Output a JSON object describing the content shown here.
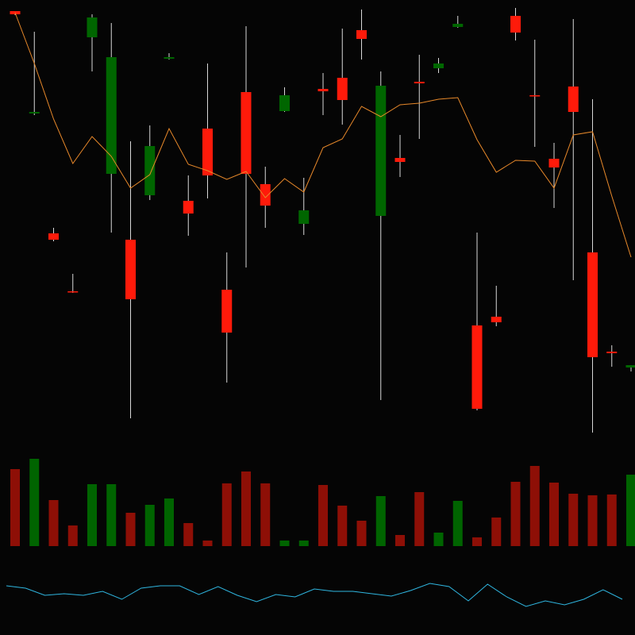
{
  "chart_data": {
    "type": "candlestick",
    "open": [
      542,
      419,
      258,
      192,
      538,
      488,
      183,
      376,
      488,
      291,
      339,
      141,
      341,
      301,
      440,
      295,
      445,
      434,
      511,
      452,
      356,
      455,
      480,
      530,
      45,
      154,
      519,
      439,
      349,
      419,
      110,
      115,
      100
    ],
    "high": [
      546,
      520,
      273,
      215,
      542,
      531,
      382,
      402,
      493,
      339,
      480,
      242,
      527,
      350,
      450,
      336,
      468,
      524,
      548,
      470,
      390,
      491,
      487,
      540,
      267,
      200,
      550,
      510,
      380,
      536,
      435,
      125,
      100
    ],
    "low": [
      541,
      415,
      256,
      191,
      470,
      267,
      33,
      308,
      485,
      263,
      310,
      78,
      223,
      273,
      419,
      264,
      415,
      403,
      485,
      56,
      337,
      385,
      468,
      525,
      43,
      149,
      509,
      375,
      298,
      207,
      15,
      98,
      92
    ],
    "close": [
      546,
      417,
      266,
      193,
      513,
      341,
      258,
      314,
      486,
      307,
      398,
      195,
      444,
      328,
      420,
      278,
      448,
      462,
      522,
      288,
      361,
      457,
      474,
      526,
      150,
      161,
      540,
      440,
      360,
      451,
      242,
      117,
      97
    ],
    "ylim": [
      0,
      560
    ],
    "up_color": "#ff1a0a",
    "down_color": "#006600",
    "moving_average": {
      "color": "#e8892a",
      "values": [
        544,
        480,
        410,
        354,
        388,
        363,
        323,
        340,
        398,
        353,
        345,
        334,
        344,
        311,
        335,
        318,
        374,
        385,
        426,
        413,
        428,
        430,
        435,
        437,
        384,
        343,
        358,
        357,
        323,
        390,
        394,
        313,
        236
      ]
    },
    "volume": {
      "values": [
        97,
        110,
        58,
        26,
        78,
        78,
        42,
        52,
        60,
        29,
        7,
        79,
        94,
        79,
        7,
        7,
        77,
        51,
        32,
        63,
        14,
        68,
        17,
        57,
        11,
        36,
        81,
        101,
        80,
        66,
        64,
        65,
        90
      ],
      "ylim": [
        0,
        110
      ],
      "up_color": "#8e0f06",
      "down_color": "#006400"
    },
    "indicator": {
      "color": "#2fb6e0",
      "values": [
        42,
        39,
        30,
        32,
        30,
        35,
        25,
        39,
        42,
        42,
        31,
        41,
        30,
        22,
        31,
        28,
        38,
        35,
        35,
        32,
        29,
        36,
        45,
        41,
        23,
        44,
        28,
        16,
        23,
        18,
        25,
        37,
        25
      ],
      "ylim": [
        0,
        100
      ]
    }
  }
}
